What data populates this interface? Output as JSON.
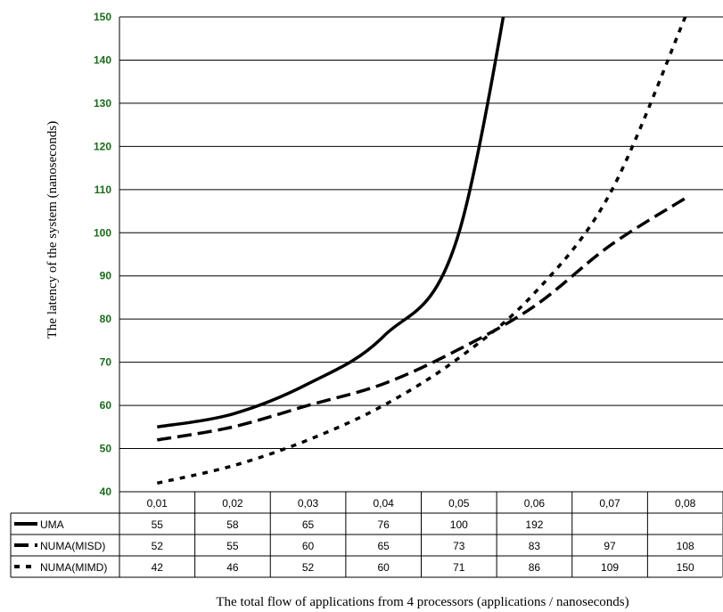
{
  "chart_data": {
    "type": "line",
    "title": "",
    "xlabel": "The total flow of applications from 4 processors (applications / nanoseconds)",
    "ylabel": "The latency of the system (nanoseconds)",
    "ylim": [
      40,
      150
    ],
    "yticks": [
      "40",
      "50",
      "60",
      "70",
      "80",
      "90",
      "100",
      "110",
      "120",
      "130",
      "140",
      "150"
    ],
    "categories": [
      "0,01",
      "0,02",
      "0,03",
      "0,04",
      "0,05",
      "0,06",
      "0,07",
      "0,08"
    ],
    "grid": true,
    "legend": "table-left",
    "series": [
      {
        "name": "UMA",
        "style": "solid",
        "values": [
          55,
          58,
          65,
          76,
          100,
          192,
          null,
          null
        ],
        "labels": [
          "55",
          "58",
          "65",
          "76",
          "100",
          "192",
          "",
          ""
        ]
      },
      {
        "name": "NUMA(MISD)",
        "style": "dashed",
        "values": [
          52,
          55,
          60,
          65,
          73,
          83,
          97,
          108
        ],
        "labels": [
          "52",
          "55",
          "60",
          "65",
          "73",
          "83",
          "97",
          "108"
        ]
      },
      {
        "name": "NUMA(MIMD)",
        "style": "dotted",
        "values": [
          42,
          46,
          52,
          60,
          71,
          86,
          109,
          150
        ],
        "labels": [
          "42",
          "46",
          "52",
          "60",
          "71",
          "86",
          "109",
          "150"
        ]
      }
    ],
    "colors": {
      "line": "#000000",
      "grid": "#000000",
      "tick": "#1a6b1a"
    }
  }
}
